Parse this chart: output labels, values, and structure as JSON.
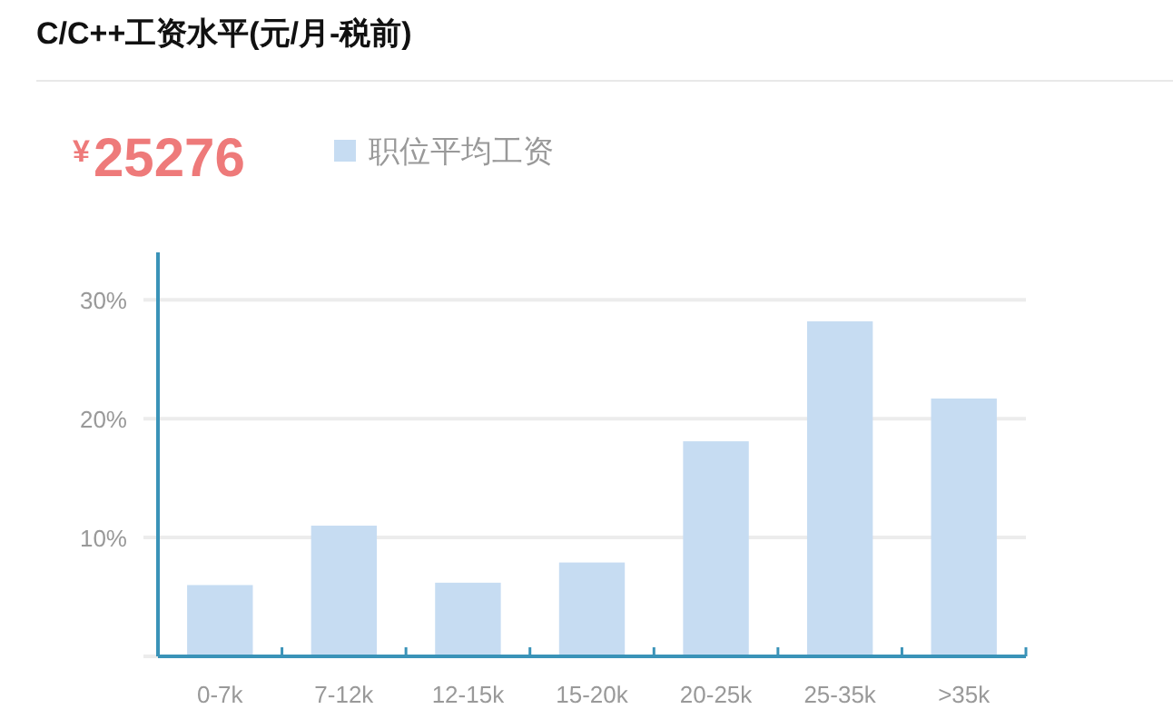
{
  "chart_data": {
    "type": "bar",
    "title": "C/C++工资水平(元/月-税前)",
    "annotations": [
      "$^{¥}$25276"
    ],
    "categories": [
      "0-7k",
      "7-12k",
      "12-15k",
      "15-20k",
      "20-25k",
      "25-35k",
      ">35k"
    ],
    "series": [
      {
        "name": "职位平均工资",
        "color": "#c6dcf2",
        "values": [
          6.0,
          11.0,
          6.2,
          7.9,
          18.1,
          28.2,
          21.7
        ]
      }
    ],
    "ylim": [
      0,
      34
    ],
    "yticks": [
      {
        "value": 0,
        "label": null
      },
      {
        "value": 10,
        "label": "10%"
      },
      {
        "value": 20,
        "label": "20%"
      },
      {
        "value": 30,
        "label": "30%"
      }
    ],
    "grid": "y",
    "legend": "top left"
  }
}
